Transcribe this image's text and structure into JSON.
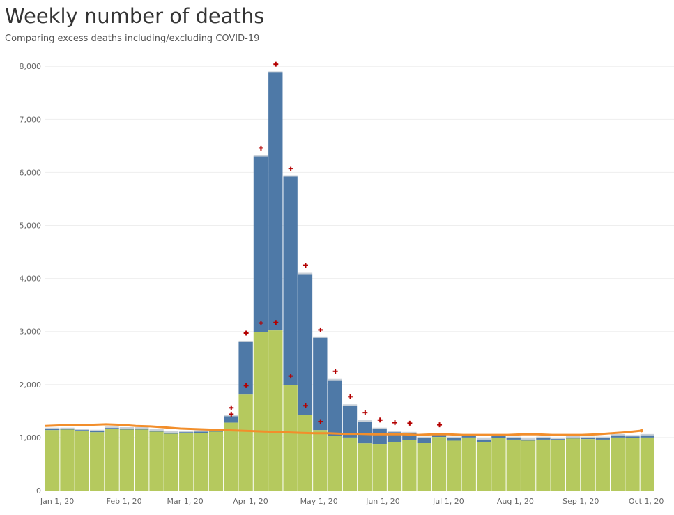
{
  "title": "Weekly number of deaths",
  "subtitle": "Comparing excess deaths including/excluding COVID-19",
  "colors": {
    "total_bar": "#4e79a7",
    "excl_covid_bar": "#b5c95e",
    "expected_line": "#f28e2b",
    "plus_marker": "#b40000",
    "bar_cap": "#c9d1d9",
    "grid": "#eeeeee"
  },
  "chart_data": {
    "type": "bar",
    "ylim": [
      0,
      8200
    ],
    "yticks": [
      "0",
      "1,000",
      "2,000",
      "3,000",
      "4,000",
      "5,000",
      "6,000",
      "7,000",
      "8,000"
    ],
    "ytick_values": [
      0,
      1000,
      2000,
      3000,
      4000,
      5000,
      6000,
      7000,
      8000
    ],
    "xtick_labels": [
      "Jan 1, 20",
      "Feb 1, 20",
      "Mar 1, 20",
      "Apr 1, 20",
      "May 1, 20",
      "Jun 1, 20",
      "Jul 1, 20",
      "Aug 1, 20",
      "Sep 1, 20",
      "Oct 1, 20"
    ],
    "xtick_week_index": [
      0.3,
      4.8,
      8.9,
      13.3,
      17.9,
      22.2,
      26.6,
      31.1,
      35.5,
      39.9
    ],
    "grid": true,
    "legend": "none",
    "weeks": 41,
    "series": [
      {
        "values": [
          1160,
          1160,
          1140,
          1120,
          1180,
          1170,
          1170,
          1130,
          1090,
          1100,
          1110,
          1130,
          1400,
          2800,
          6300,
          7880,
          5920,
          4080,
          2880,
          2080,
          1600,
          1300,
          1160,
          1100,
          1080,
          990,
          1060,
          990,
          1030,
          960,
          1030,
          990,
          960,
          990,
          970,
          1000,
          990,
          990,
          1040,
          1020,
          1040
        ]
      },
      {
        "values": [
          1140,
          1150,
          1120,
          1100,
          1160,
          1150,
          1150,
          1110,
          1070,
          1090,
          1090,
          1110,
          1280,
          1810,
          2990,
          3020,
          1990,
          1430,
          1140,
          1030,
          1000,
          890,
          880,
          920,
          950,
          900,
          1010,
          940,
          1000,
          920,
          990,
          960,
          940,
          960,
          950,
          980,
          970,
          960,
          1000,
          990,
          1000
        ]
      },
      {
        "values": [
          1220,
          1230,
          1240,
          1240,
          1250,
          1240,
          1220,
          1210,
          1190,
          1170,
          1160,
          1150,
          1140,
          1130,
          1120,
          1110,
          1100,
          1090,
          1080,
          1080,
          1070,
          1070,
          1060,
          1060,
          1060,
          1050,
          1060,
          1060,
          1050,
          1050,
          1050,
          1050,
          1060,
          1060,
          1050,
          1050,
          1050,
          1060,
          1080,
          1100,
          1130
        ]
      }
    ],
    "plus_markers": [
      {
        "week": 12,
        "value": 1560
      },
      {
        "week": 12,
        "value": 1440
      },
      {
        "week": 13,
        "value": 2970
      },
      {
        "week": 13,
        "value": 1980
      },
      {
        "week": 14,
        "value": 6460
      },
      {
        "week": 14,
        "value": 3160
      },
      {
        "week": 15,
        "value": 8040
      },
      {
        "week": 15,
        "value": 3170
      },
      {
        "week": 16,
        "value": 6070
      },
      {
        "week": 16,
        "value": 2160
      },
      {
        "week": 17,
        "value": 4250
      },
      {
        "week": 17,
        "value": 1600
      },
      {
        "week": 18,
        "value": 3030
      },
      {
        "week": 18,
        "value": 1300
      },
      {
        "week": 19,
        "value": 2250
      },
      {
        "week": 20,
        "value": 1770
      },
      {
        "week": 21,
        "value": 1470
      },
      {
        "week": 22,
        "value": 1330
      },
      {
        "week": 23,
        "value": 1280
      },
      {
        "week": 24,
        "value": 1270
      },
      {
        "week": 26,
        "value": 1240
      }
    ]
  }
}
